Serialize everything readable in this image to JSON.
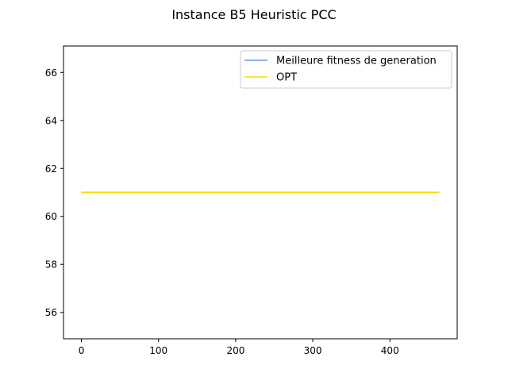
{
  "chart_data": {
    "type": "line",
    "title": "Instance B5 Heuristic PCC",
    "xlabel": "",
    "ylabel": "",
    "xlim": [
      -23.2,
      487.2
    ],
    "ylim": [
      54.9,
      67.1
    ],
    "xticks": [
      0,
      100,
      200,
      300,
      400
    ],
    "yticks": [
      56,
      58,
      60,
      62,
      64,
      66
    ],
    "grid": false,
    "legend_position": "upper-right",
    "series": [
      {
        "name": "Meilleure fitness de generation",
        "color": "#6495ED",
        "x": [
          0,
          464
        ],
        "y": [
          61,
          61
        ]
      },
      {
        "name": "OPT",
        "color": "#FFD700",
        "x": [
          0,
          464
        ],
        "y": [
          61,
          61
        ]
      }
    ]
  }
}
